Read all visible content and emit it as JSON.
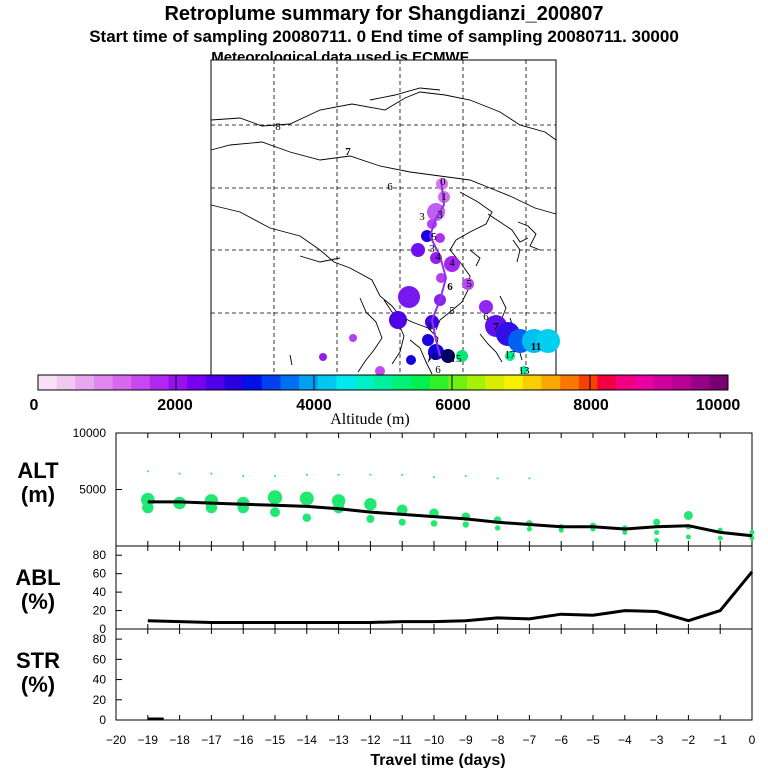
{
  "header": {
    "title": "Retroplume summary for Shangdianzi_200807",
    "subtitle": "Start time of sampling 20080711.    0     End time of sampling 20080711. 30000",
    "met_line": "Meteorological data used is ECMWF"
  },
  "colorbar": {
    "colors": [
      "#f8e0f8",
      "#f0c8f0",
      "#e8a8f0",
      "#e088f0",
      "#d868f0",
      "#c848f0",
      "#b028f0",
      "#9810f0",
      "#7800f0",
      "#5000e8",
      "#2800e0",
      "#0010e8",
      "#0040f0",
      "#0070f0",
      "#00a0f0",
      "#00c8f0",
      "#00e8f0",
      "#00f0c8",
      "#00f0a0",
      "#00f078",
      "#00f050",
      "#30f028",
      "#70f010",
      "#a8f008",
      "#d8f000",
      "#f8f000",
      "#f8d000",
      "#f8a800",
      "#f87800",
      "#f84000",
      "#f00040",
      "#f00080",
      "#e800a0",
      "#d000a0",
      "#b80098",
      "#980088",
      "#780070"
    ],
    "ticks": [
      "0",
      "2000",
      "4000",
      "6000",
      "8000",
      "10000"
    ],
    "label": "Altitude (m)"
  },
  "map": {
    "labels": [
      {
        "t": "8"
      },
      {
        "t": "7"
      },
      {
        "t": "6"
      },
      {
        "t": "0"
      },
      {
        "t": "1"
      },
      {
        "t": "3"
      },
      {
        "t": "3"
      },
      {
        "t": "5"
      },
      {
        "t": "3"
      },
      {
        "t": "4"
      },
      {
        "t": "4"
      },
      {
        "t": "5"
      },
      {
        "t": "6"
      },
      {
        "t": "6"
      },
      {
        "t": "5"
      },
      {
        "t": "7"
      },
      {
        "t": "1"
      },
      {
        "t": "11"
      },
      {
        "t": "18"
      },
      {
        "t": "15"
      },
      {
        "t": "6"
      },
      {
        "t": "17"
      },
      {
        "t": "13"
      }
    ]
  },
  "panels": {
    "alt": {
      "label1": "ALT",
      "label2": "(m)",
      "yticks": [
        "10000",
        "5000"
      ]
    },
    "abl": {
      "label1": "ABL",
      "label2": "(%)",
      "yticks": [
        "80",
        "60",
        "40",
        "20",
        "0"
      ]
    },
    "str": {
      "label1": "STR",
      "label2": "(%)",
      "yticks": [
        "80",
        "60",
        "40",
        "20",
        "0"
      ]
    }
  },
  "chart_data": {
    "type": "line",
    "title": "Retroplume summary for Shangdianzi_200807",
    "xlabel": "Travel time (days)",
    "x_ticks": [
      "−20",
      "−19",
      "−18",
      "−17",
      "−16",
      "−15",
      "−14",
      "−13",
      "−12",
      "−11",
      "−10",
      "−9",
      "−8",
      "−7",
      "−6",
      "−5",
      "−4",
      "−3",
      "−2",
      "−1",
      "0"
    ],
    "xlim": [
      -20,
      0
    ],
    "series": [
      {
        "name": "ALT (m)",
        "ylim": [
          0,
          10000
        ],
        "x": [
          -19,
          -18,
          -17,
          -16,
          -15,
          -14,
          -13,
          -12,
          -11,
          -10,
          -9,
          -8,
          -7,
          -6,
          -5,
          -4,
          -3,
          -2,
          -1,
          0
        ],
        "values": [
          3900,
          3900,
          3800,
          3700,
          3600,
          3500,
          3300,
          3000,
          2800,
          2600,
          2400,
          2100,
          1900,
          1700,
          1700,
          1500,
          1700,
          1800,
          1200,
          900
        ]
      },
      {
        "name": "ABL (%)",
        "ylim": [
          0,
          90
        ],
        "x": [
          -19,
          -18,
          -17,
          -16,
          -15,
          -14,
          -13,
          -12,
          -11,
          -10,
          -9,
          -8,
          -7,
          -6,
          -5,
          -4,
          -3,
          -2,
          -1,
          0
        ],
        "values": [
          9,
          8,
          7,
          7,
          7,
          7,
          7,
          7,
          8,
          8,
          9,
          12,
          11,
          16,
          15,
          20,
          19,
          9,
          20,
          62
        ]
      },
      {
        "name": "STR (%)",
        "ylim": [
          0,
          90
        ],
        "x": [
          -19,
          -18.5
        ],
        "values": [
          1,
          1
        ]
      }
    ],
    "alt_scatter": [
      {
        "x": -19,
        "y": 6600
      },
      {
        "x": -18,
        "y": 6400
      },
      {
        "x": -17,
        "y": 6400
      },
      {
        "x": -16,
        "y": 6200
      },
      {
        "x": -15,
        "y": 6200
      },
      {
        "x": -14,
        "y": 6300
      },
      {
        "x": -13,
        "y": 6300
      },
      {
        "x": -12,
        "y": 6300
      },
      {
        "x": -11,
        "y": 6300
      },
      {
        "x": -10,
        "y": 6100
      },
      {
        "x": -9,
        "y": 6200
      },
      {
        "x": -8,
        "y": 6000
      },
      {
        "x": -7,
        "y": 6000
      },
      {
        "x": -19,
        "y": 4100
      },
      {
        "x": -19,
        "y": 3400
      },
      {
        "x": -18,
        "y": 3800
      },
      {
        "x": -17,
        "y": 3400
      },
      {
        "x": -17,
        "y": 4000
      },
      {
        "x": -16,
        "y": 3800
      },
      {
        "x": -16,
        "y": 3400
      },
      {
        "x": -15,
        "y": 4300
      },
      {
        "x": -15,
        "y": 3000
      },
      {
        "x": -14,
        "y": 4200
      },
      {
        "x": -14,
        "y": 2500
      },
      {
        "x": -13,
        "y": 4000
      },
      {
        "x": -13,
        "y": 3400
      },
      {
        "x": -12,
        "y": 3700
      },
      {
        "x": -12,
        "y": 2400
      },
      {
        "x": -11,
        "y": 3200
      },
      {
        "x": -11,
        "y": 2100
      },
      {
        "x": -10,
        "y": 2900
      },
      {
        "x": -10,
        "y": 2000
      },
      {
        "x": -9,
        "y": 2600
      },
      {
        "x": -9,
        "y": 1900
      },
      {
        "x": -8,
        "y": 2300
      },
      {
        "x": -8,
        "y": 1600
      },
      {
        "x": -7,
        "y": 2000
      },
      {
        "x": -7,
        "y": 1500
      },
      {
        "x": -6,
        "y": 1700
      },
      {
        "x": -6,
        "y": 1400
      },
      {
        "x": -5,
        "y": 1800
      },
      {
        "x": -5,
        "y": 1500
      },
      {
        "x": -4,
        "y": 1600
      },
      {
        "x": -4,
        "y": 1200
      },
      {
        "x": -3,
        "y": 2100
      },
      {
        "x": -3,
        "y": 1200
      },
      {
        "x": -3,
        "y": 500
      },
      {
        "x": -2,
        "y": 2700
      },
      {
        "x": -2,
        "y": 1700
      },
      {
        "x": -2,
        "y": 800
      },
      {
        "x": -1,
        "y": 1400
      },
      {
        "x": -1,
        "y": 700
      },
      {
        "x": 0,
        "y": 1200
      },
      {
        "x": 0,
        "y": 700
      }
    ]
  }
}
